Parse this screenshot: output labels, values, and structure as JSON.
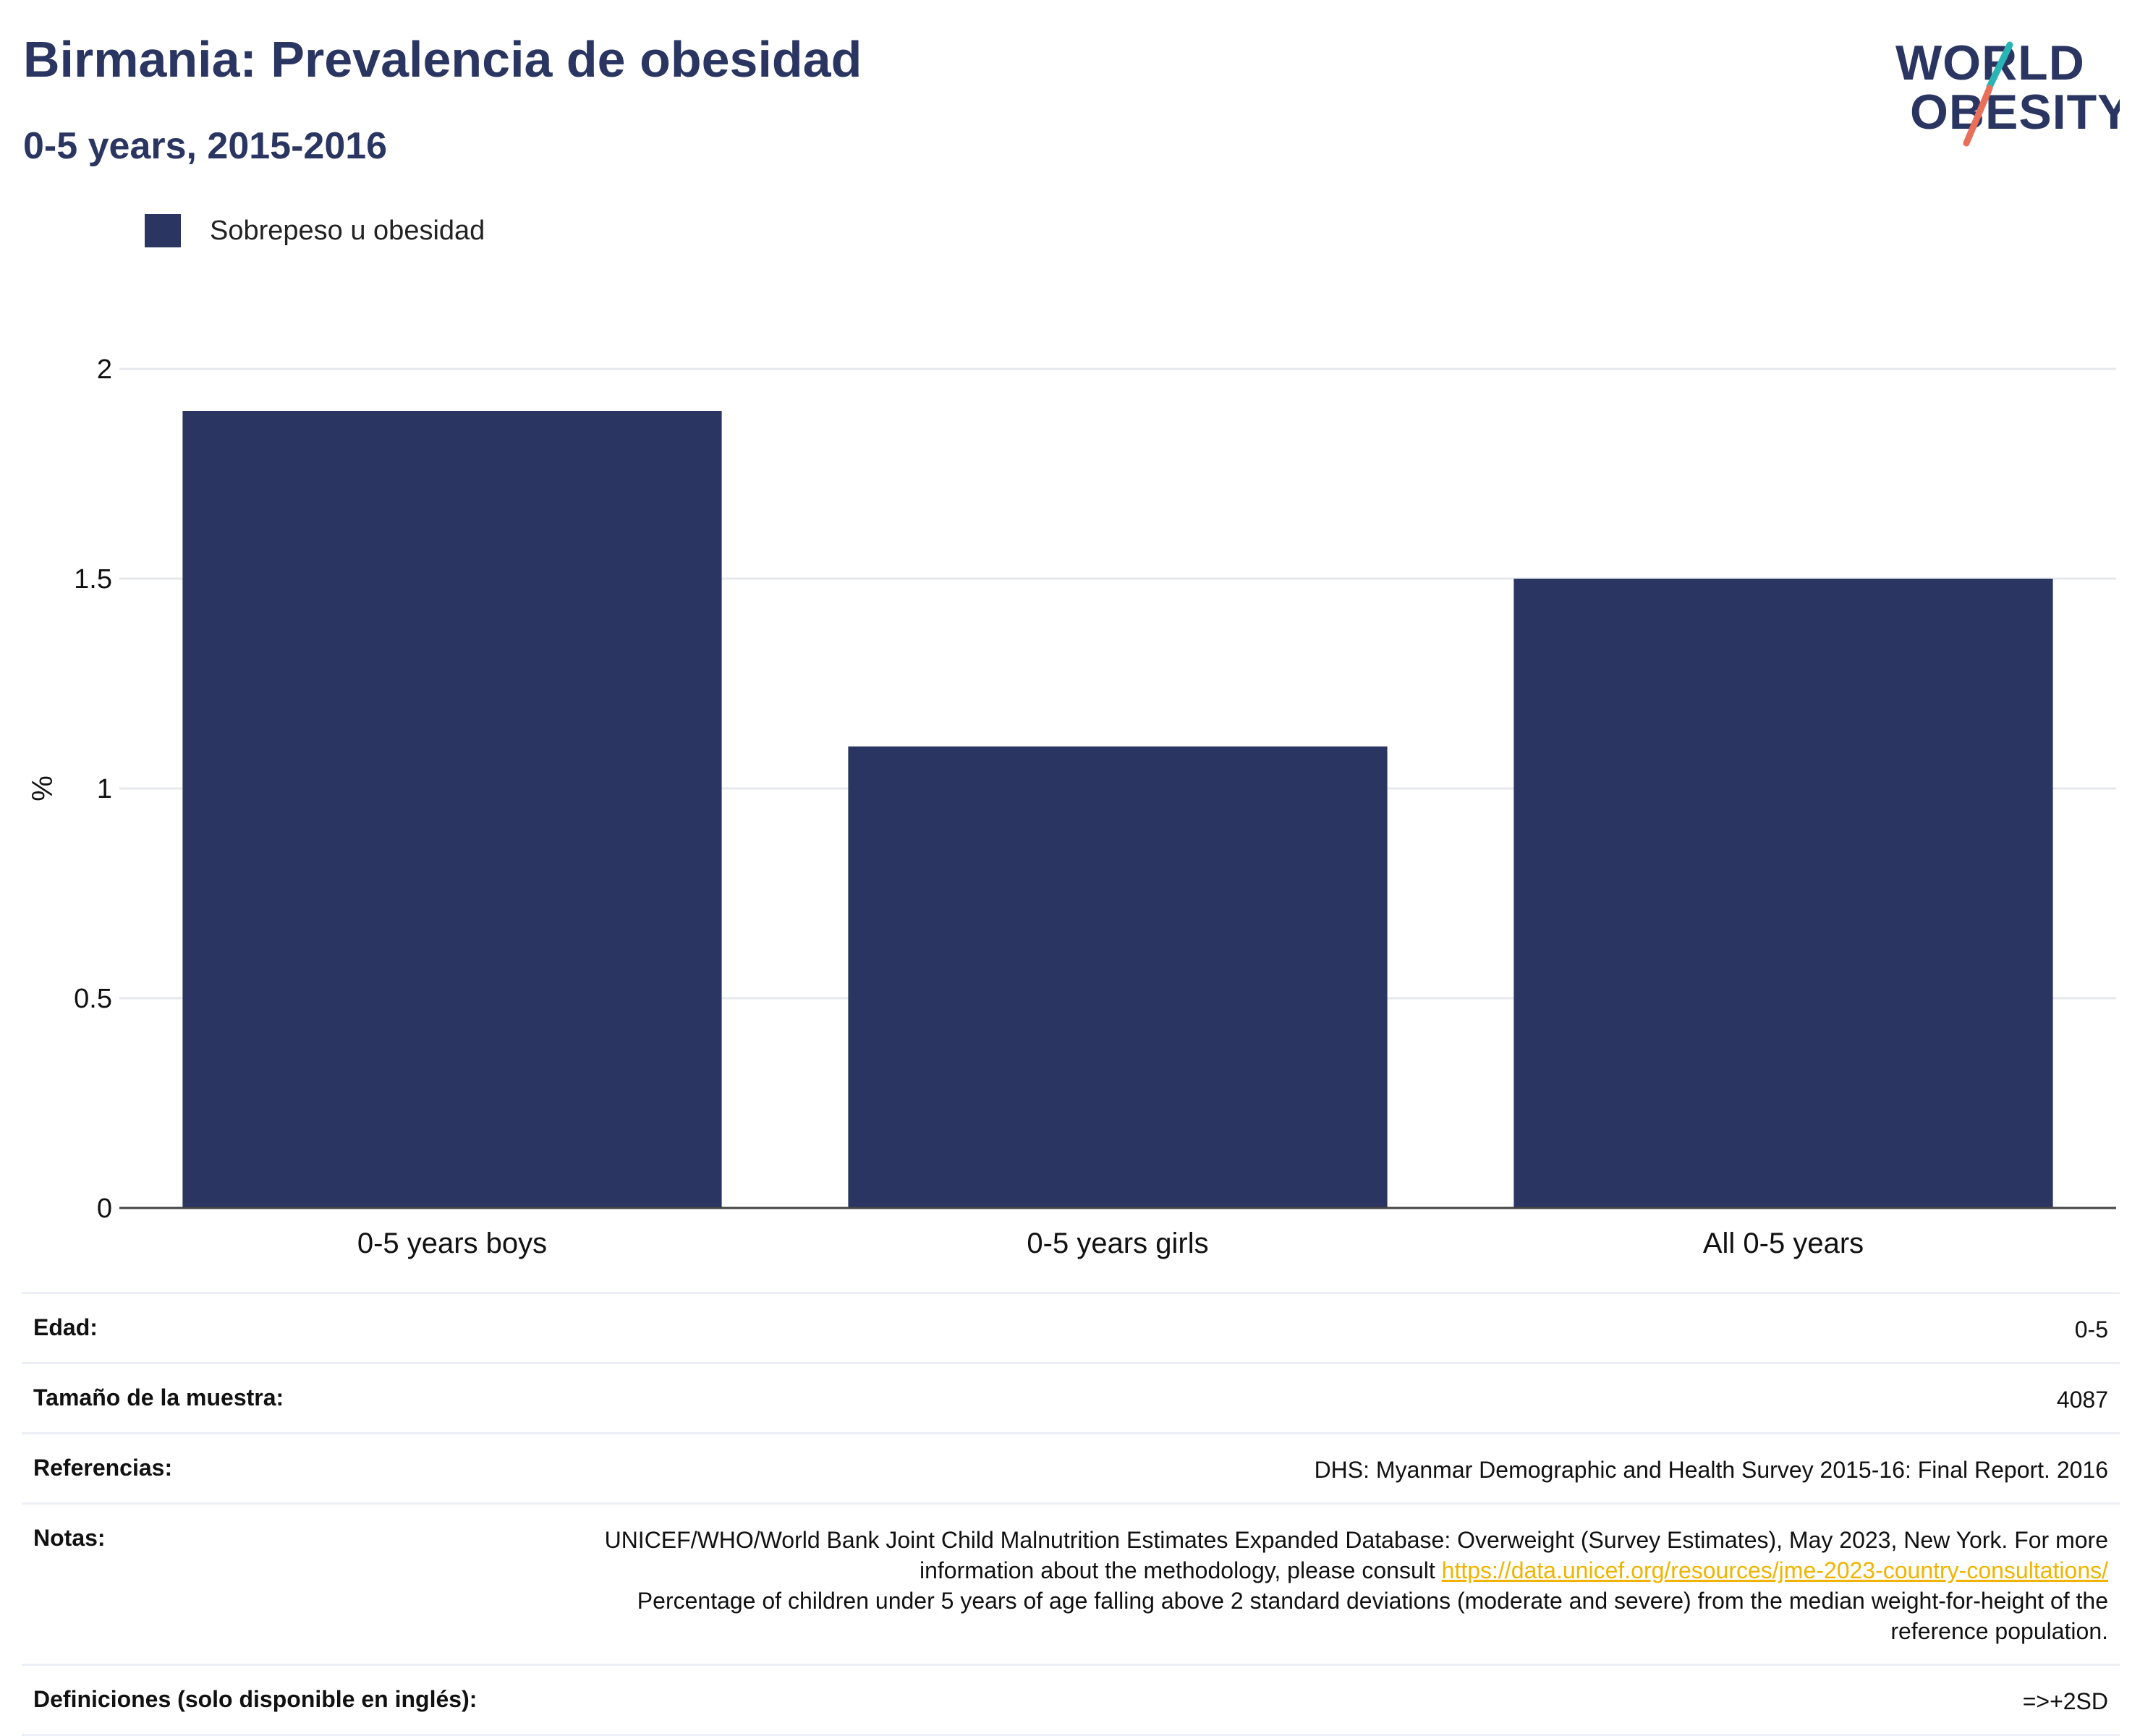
{
  "header": {
    "title": "Birmania: Prevalencia de obesidad",
    "subtitle": "0-5 years, 2015-2016"
  },
  "logo": {
    "line1": "WORLD",
    "line2": "OBESITY"
  },
  "colors": {
    "bar": "#2a3661",
    "title": "#2a3661",
    "link": "#f0b400",
    "logo_teal": "#2ab5b5",
    "logo_coral": "#e8705a"
  },
  "chart_data": {
    "type": "bar",
    "categories": [
      "0-5 years boys",
      "0-5 years girls",
      "All 0-5 years"
    ],
    "series": [
      {
        "name": "Sobrepeso u obesidad",
        "values": [
          1.9,
          1.1,
          1.5
        ]
      }
    ],
    "ylabel": "%",
    "ylim": [
      0,
      2
    ],
    "yticks": [
      0,
      0.5,
      1,
      1.5,
      2
    ],
    "ytick_labels": [
      "0",
      "0.5",
      "1",
      "1.5",
      "2"
    ],
    "grid": true,
    "legend_position": "top-left"
  },
  "meta": {
    "age_label": "Edad:",
    "age_value": "0-5",
    "sample_label": "Tamaño de la muestra:",
    "sample_value": "4087",
    "refs_label": "Referencias:",
    "refs_value": "DHS: Myanmar Demographic and Health Survey 2015-16: Final Report. 2016",
    "notes_label": "Notas:",
    "notes_text_1": "UNICEF/WHO/World Bank Joint Child Malnutrition Estimates Expanded Database: Overweight (Survey Estimates), May 2023, New York. For more information about the methodology, please consult ",
    "notes_link": "https://data.unicef.org/resources/jme-2023-country-consultations/",
    "notes_text_2": "Percentage of children under 5 years of age falling above 2 standard deviations (moderate and severe) from the median weight-for-height of the reference population.",
    "defs_label": "Definiciones (solo disponible en inglés):",
    "defs_value": "=>+2SD"
  }
}
